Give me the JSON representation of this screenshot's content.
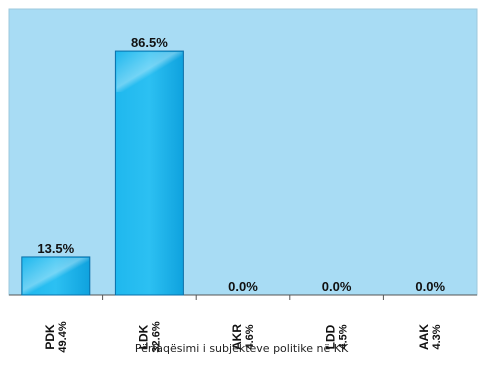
{
  "chart_data": {
    "type": "bar",
    "title": "Përfaqësimi i subjekteve politike në KK",
    "categories": [
      {
        "name": "PDK",
        "share": "49.4%"
      },
      {
        "name": "LDK",
        "share": "32.6%"
      },
      {
        "name": "AKR",
        "share": "4.6%"
      },
      {
        "name": "LDD",
        "share": "4.5%"
      },
      {
        "name": "AAK",
        "share": "4.3%"
      }
    ],
    "values": [
      13.5,
      86.5,
      0.0,
      0.0,
      0.0
    ],
    "value_labels": [
      "13.5%",
      "86.5%",
      "0.0%",
      "0.0%",
      "0.0%"
    ],
    "ylim": [
      0,
      100
    ],
    "grid": false,
    "legend": "none",
    "colors": {
      "plot_bg": "#a8dcf4",
      "bar_fill": "#1ab0e8",
      "bar_highlight": "#7fd7f6",
      "bar_stroke": "#0a6fa8",
      "axis": "#555555"
    }
  }
}
